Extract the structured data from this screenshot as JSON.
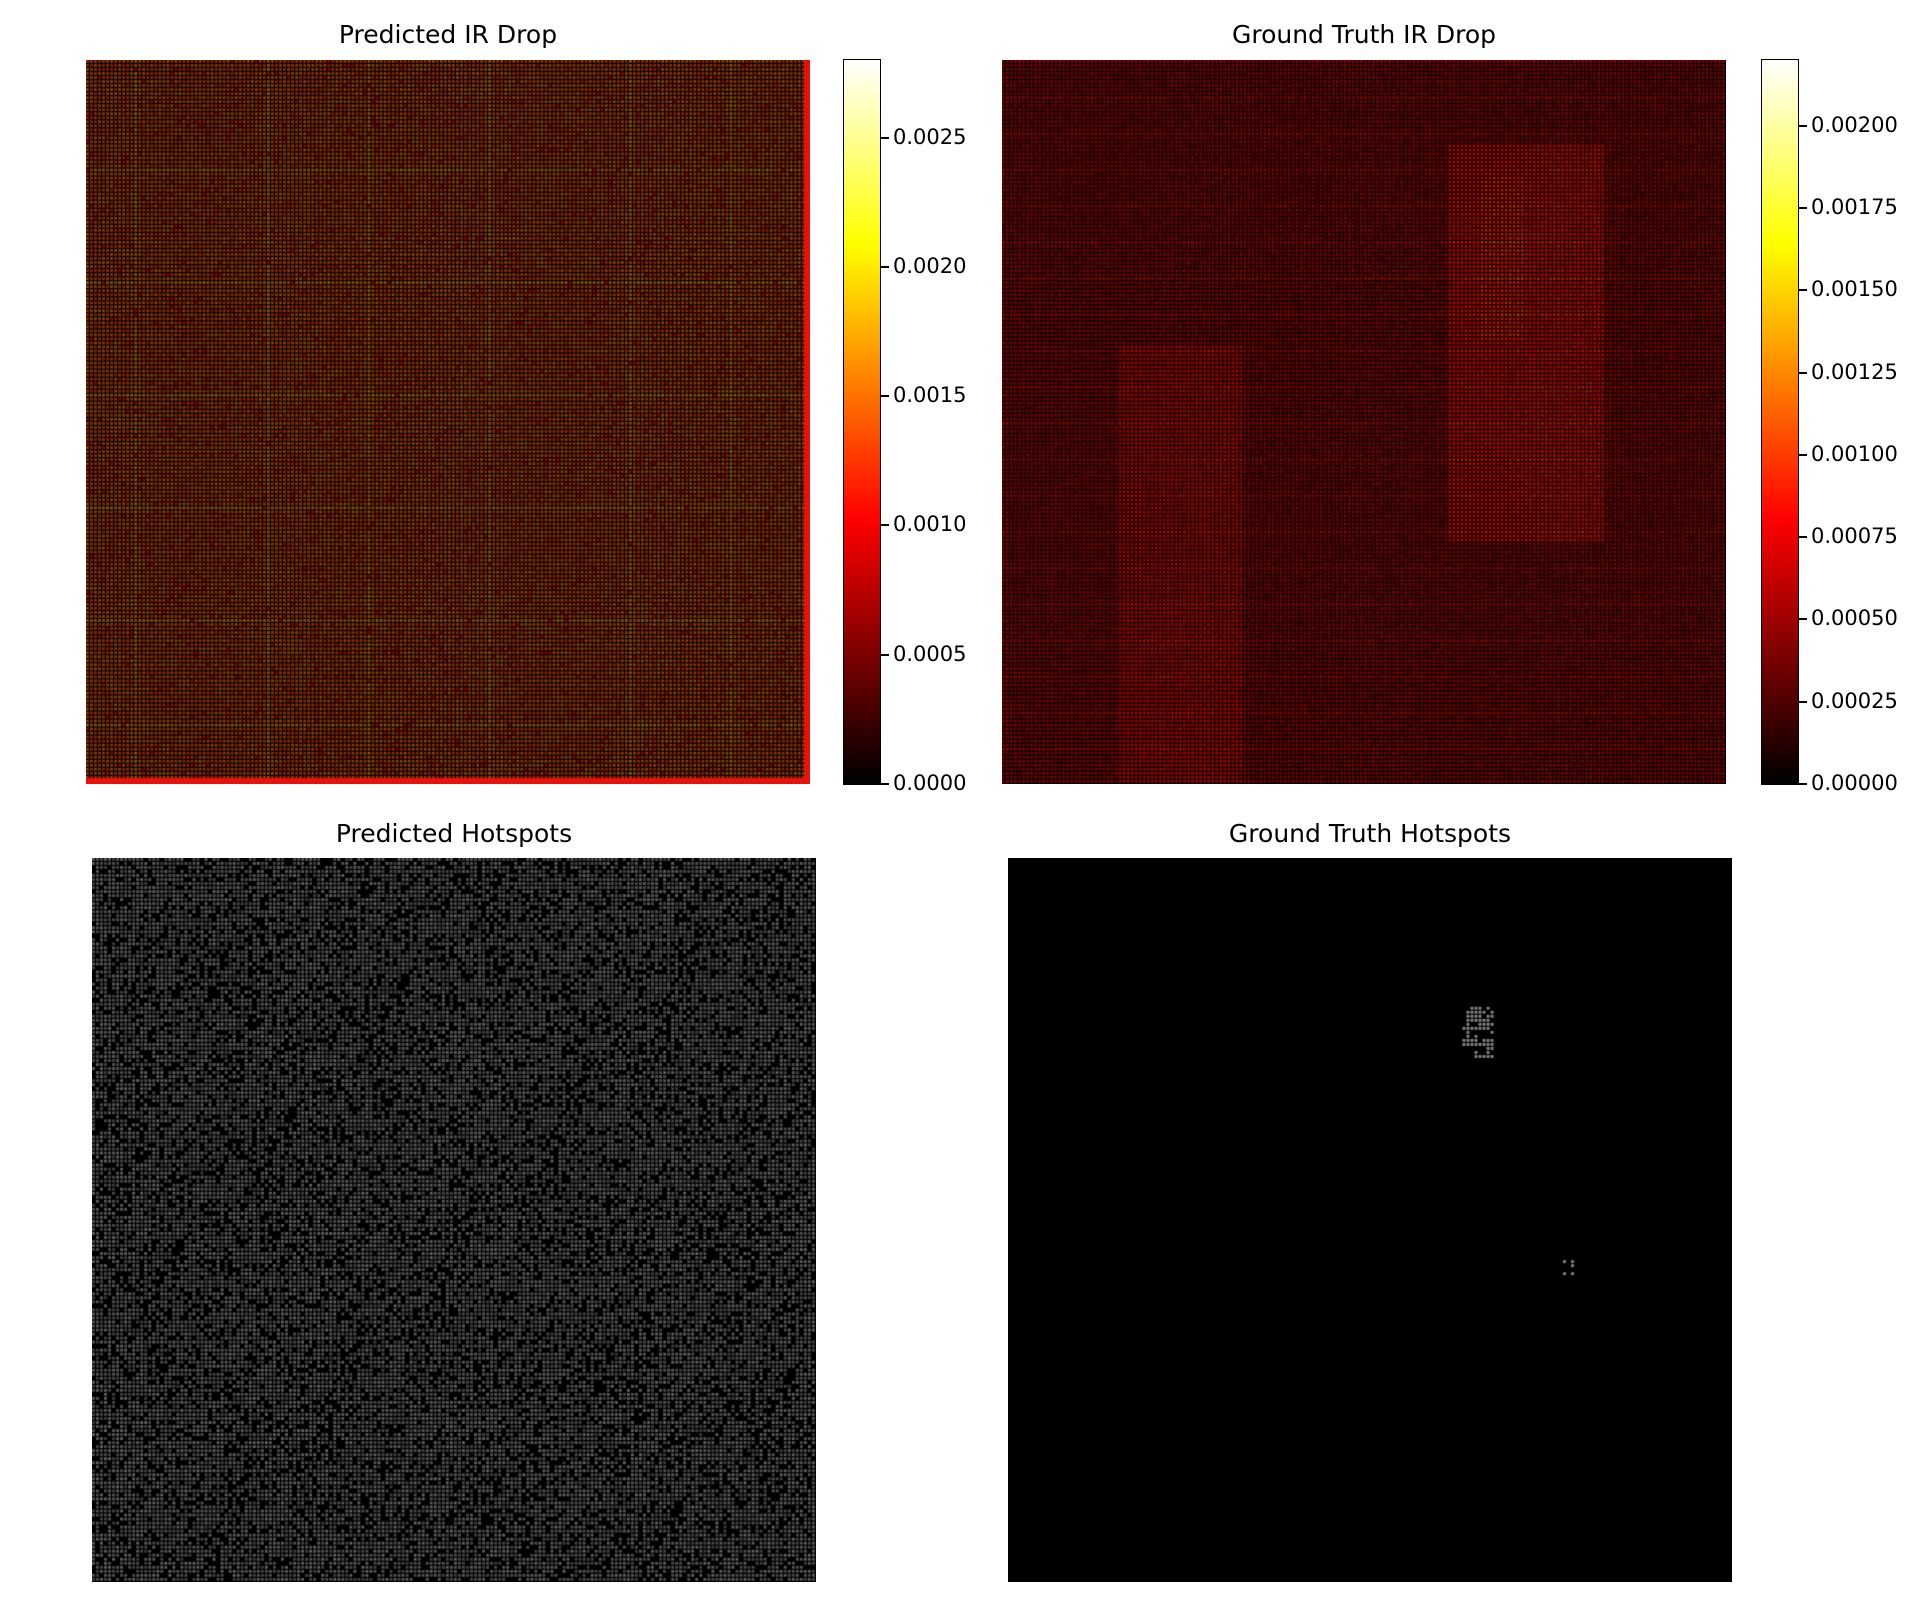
{
  "chart_data": [
    {
      "type": "heatmap",
      "title": "Predicted IR Drop",
      "colormap": "hot",
      "colorbar": {
        "min": 0,
        "max": 0.0028,
        "ticks": [
          {
            "value": 0,
            "label": "0.0000"
          },
          {
            "value": 0.0005,
            "label": "0.0005"
          },
          {
            "value": 0.001,
            "label": "0.0010"
          },
          {
            "value": 0.0015,
            "label": "0.0015"
          },
          {
            "value": 0.002,
            "label": "0.0020"
          },
          {
            "value": 0.0025,
            "label": "0.0025"
          }
        ]
      },
      "axes_visible": false
    },
    {
      "type": "heatmap",
      "title": "Ground Truth IR Drop",
      "colormap": "hot",
      "colorbar": {
        "min": 0,
        "max": 0.0022,
        "ticks": [
          {
            "value": 0,
            "label": "0.00000"
          },
          {
            "value": 0.00025,
            "label": "0.00025"
          },
          {
            "value": 0.0005,
            "label": "0.00050"
          },
          {
            "value": 0.00075,
            "label": "0.00075"
          },
          {
            "value": 0.001,
            "label": "0.00100"
          },
          {
            "value": 0.00125,
            "label": "0.00125"
          },
          {
            "value": 0.0015,
            "label": "0.00150"
          },
          {
            "value": 0.00175,
            "label": "0.00175"
          },
          {
            "value": 0.002,
            "label": "0.00200"
          }
        ]
      },
      "axes_visible": false
    },
    {
      "type": "heatmap",
      "title": "Predicted Hotspots",
      "colormap": "gray",
      "axes_visible": false
    },
    {
      "type": "heatmap",
      "title": "Ground Truth Hotspots",
      "colormap": "gray",
      "axes_visible": false
    }
  ]
}
